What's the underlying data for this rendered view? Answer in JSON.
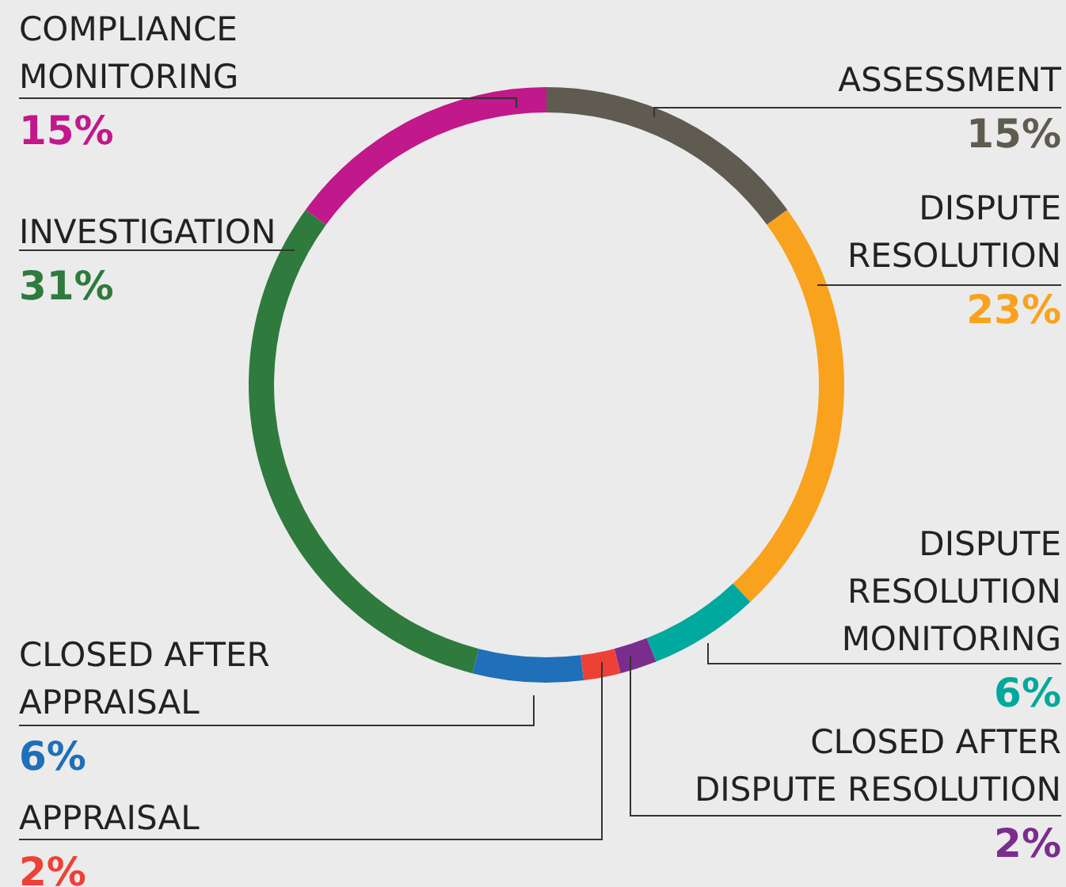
{
  "chart_data": {
    "type": "donut",
    "categories": [
      "ASSESSMENT",
      "DISPUTE RESOLUTION",
      "DISPUTE RESOLUTION MONITORING",
      "CLOSED AFTER DISPUTE RESOLUTION",
      "APPRAISAL",
      "CLOSED AFTER APPRAISAL",
      "INVESTIGATION",
      "COMPLIANCE MONITORING"
    ],
    "values": [
      15,
      23,
      6,
      2,
      2,
      6,
      31,
      15
    ],
    "value_labels": [
      "15%",
      "23%",
      "6%",
      "2%",
      "2%",
      "6%",
      "31%",
      "15%"
    ],
    "colors": [
      "#5f5b50",
      "#f9a21d",
      "#00a99d",
      "#7b2d8e",
      "#ee4136",
      "#1f6fb9",
      "#2f7a3d",
      "#c1188b"
    ],
    "legend": false
  }
}
